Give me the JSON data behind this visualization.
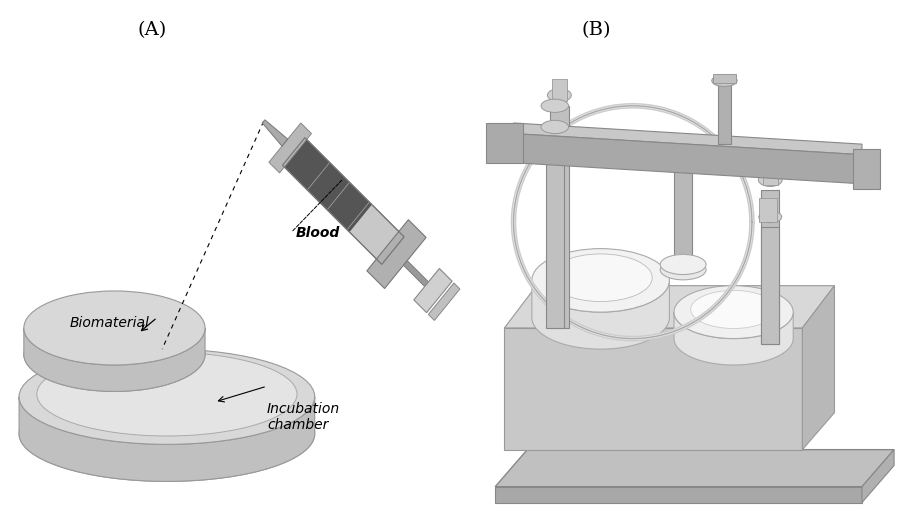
{
  "background_color": "#ffffff",
  "panel_A_label": "(A)",
  "panel_B_label": "(B)",
  "label_fontsize": 14,
  "blood_label": "Blood",
  "biomaterial_label": "Biomaterial",
  "incubation_label": "Incubation\nchamber",
  "text_fontsize": 10,
  "figsize": [
    9.17,
    5.29
  ],
  "dpi": 100,
  "syr_color_dark": "#555555",
  "syr_color_mid": "#888888",
  "syr_color_light": "#cccccc",
  "dish_color_top": "#d8d8d8",
  "dish_color_side": "#b8b8b8",
  "dish_color_rim": "#e8e8e8",
  "bio_color": "#c8c8c8",
  "device_dark": "#888888",
  "device_mid": "#aaaaaa",
  "device_light": "#dddddd",
  "device_white": "#f0f0f0"
}
